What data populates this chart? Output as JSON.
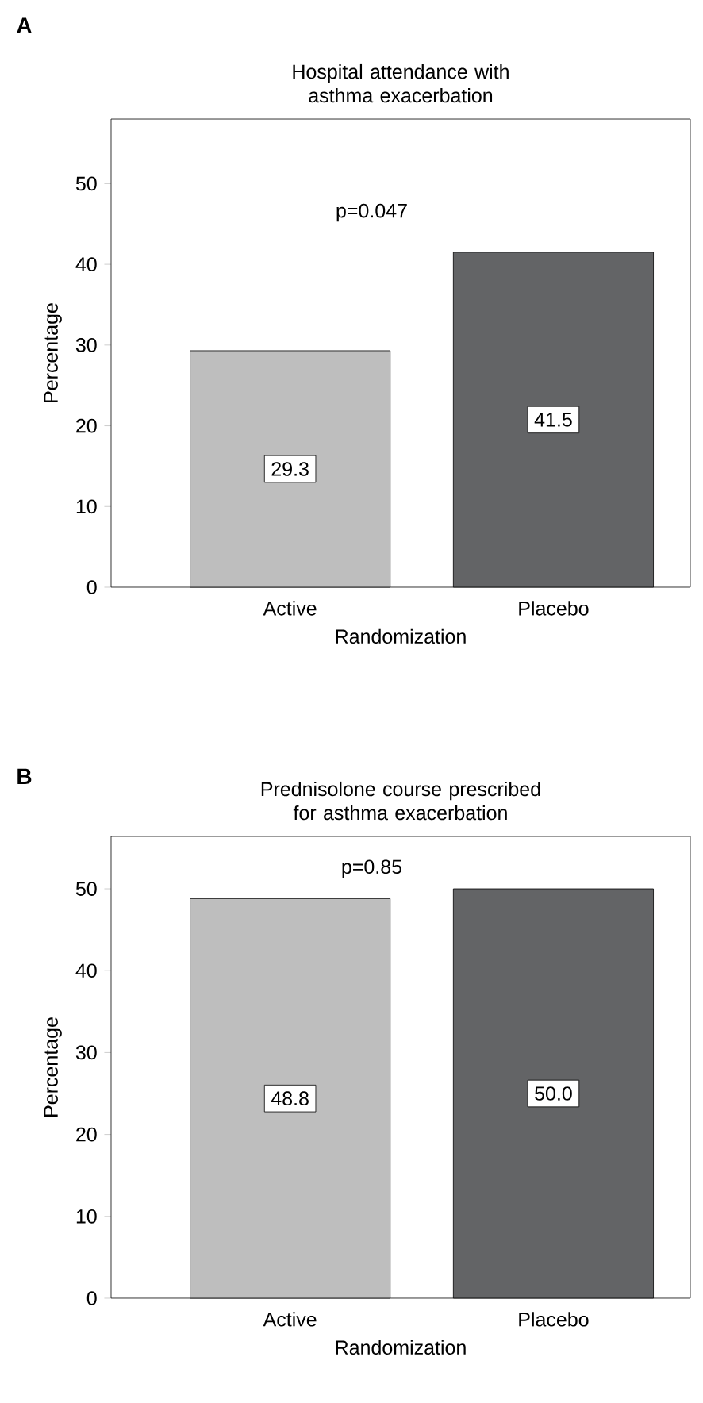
{
  "chart_data": [
    {
      "type": "bar",
      "title": "Hospital attendance with asthma exacerbation",
      "xlabel": "Randomization",
      "ylabel": "Percentage",
      "categories": [
        "Active",
        "Placebo"
      ],
      "values": [
        29.3,
        41.5
      ],
      "colors": [
        "#bebebe",
        "#636466"
      ],
      "ylim": [
        0,
        58
      ],
      "yticks": [
        0,
        10,
        20,
        30,
        40,
        50
      ],
      "value_labels": [
        "29.3",
        "41.5"
      ],
      "annotations": [
        "A",
        "p=0.047"
      ]
    },
    {
      "type": "bar",
      "title": "Prednisolone course prescribed for asthma exacerbation",
      "xlabel": "Randomization",
      "ylabel": "Percentage",
      "categories": [
        "Active",
        "Placebo"
      ],
      "values": [
        48.8,
        50.0
      ],
      "colors": [
        "#bebebe",
        "#636466"
      ],
      "ylim": [
        0,
        56.4
      ],
      "yticks": [
        0,
        10,
        20,
        30,
        40,
        50
      ],
      "value_labels": [
        "48.8",
        "50.0"
      ],
      "annotations": [
        "B",
        "p=0.85"
      ]
    }
  ]
}
